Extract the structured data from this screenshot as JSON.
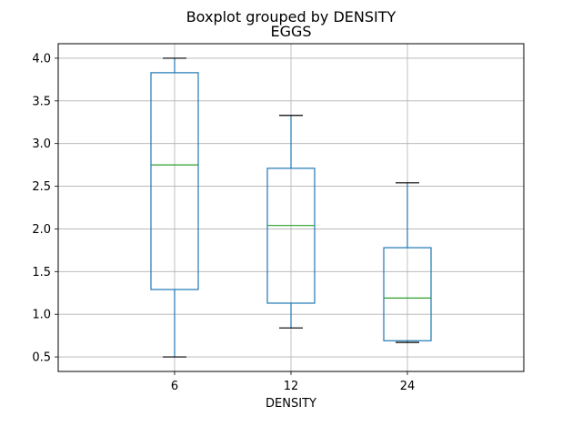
{
  "chart_data": {
    "type": "boxplot",
    "suptitle": "Boxplot grouped by DENSITY",
    "title": "EGGS",
    "xlabel": "DENSITY",
    "ylabel": "",
    "categories": [
      "6",
      "12",
      "24"
    ],
    "boxes": [
      {
        "category": "6",
        "whisker_low": 0.5,
        "q1": 1.29,
        "median": 2.75,
        "q3": 3.83,
        "whisker_high": 4.0
      },
      {
        "category": "12",
        "whisker_low": 0.84,
        "q1": 1.13,
        "median": 2.04,
        "q3": 2.71,
        "whisker_high": 3.33
      },
      {
        "category": "24",
        "whisker_low": 0.67,
        "q1": 0.69,
        "median": 1.19,
        "q3": 1.78,
        "whisker_high": 2.54
      }
    ],
    "ylim": [
      0.33,
      4.17
    ],
    "yticks": [
      0.5,
      1.0,
      1.5,
      2.0,
      2.5,
      3.0,
      3.5,
      4.0
    ],
    "ytick_labels": [
      "0.5",
      "1.0",
      "1.5",
      "2.0",
      "2.5",
      "3.0",
      "3.5",
      "4.0"
    ],
    "grid": true,
    "colors": {
      "box": "#1f77b4",
      "median": "#2ca02c",
      "cap": "#000000",
      "grid": "#b0b0b0",
      "axes": "#000000"
    }
  }
}
